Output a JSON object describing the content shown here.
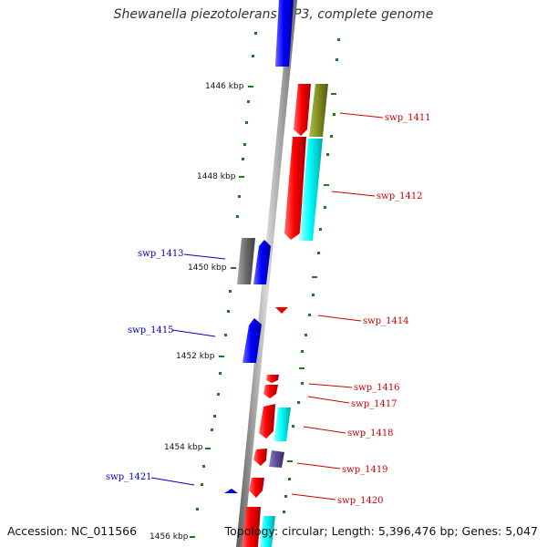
{
  "title": "Shewanella piezotolerans WP3, complete genome",
  "accession": "Accession: NC_011566",
  "summary": "Topology: circular; Length: 5,396,476 bp; Genes: 5,047",
  "colors": {
    "backbone": "#888888",
    "forward_label": "#cc0000",
    "reverse_label": "#0000cc",
    "tick": "#1f7a1f",
    "cds_red": "#ee0000",
    "cds_blue": "#0000ee",
    "cds_cyan": "#00e5e5",
    "cds_olive": "#7f8a1f",
    "cds_gray": "#6e6e6e",
    "cds_slate": "#5a4f9a"
  },
  "kbp_labels": [
    "1446 kbp",
    "1448 kbp",
    "1450 kbp",
    "1452 kbp",
    "1454 kbp",
    "1456 kbp"
  ],
  "gene_labels": {
    "swp_1411": "swp_1411",
    "swp_1412": "swp_1412",
    "swp_1413": "swp_1413",
    "swp_1414": "swp_1414",
    "swp_1415": "swp_1415",
    "swp_1416": "swp_1416",
    "swp_1417": "swp_1417",
    "swp_1418": "swp_1418",
    "swp_1419": "swp_1419",
    "swp_1420": "swp_1420",
    "swp_1421": "swp_1421"
  }
}
